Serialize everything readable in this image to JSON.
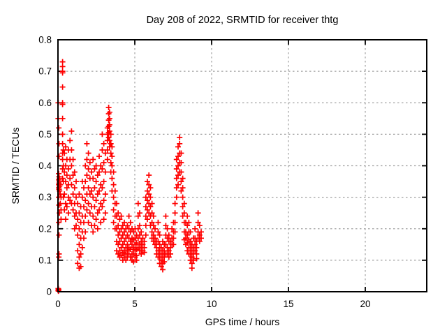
{
  "page": {
    "background": "#ffffff"
  },
  "chart_data": {
    "type": "scatter",
    "title": "Day 208 of 2022, SRMTID for receiver thtg",
    "xlabel": "GPS time / hours",
    "ylabel": "SRMTID / TECUs",
    "xlim": [
      0,
      24
    ],
    "ylim": [
      0,
      0.8
    ],
    "xticks": [
      0,
      5,
      10,
      15,
      20
    ],
    "xtick_labels": [
      "0",
      "5",
      "10",
      "15",
      "20"
    ],
    "yticks": [
      0,
      0.1,
      0.2,
      0.3,
      0.4,
      0.5,
      0.6,
      0.7,
      0.8
    ],
    "ytick_labels": [
      "0",
      "0.1",
      "0.2",
      "0.3",
      "0.4",
      "0.5",
      "0.6",
      "0.7",
      "0.8"
    ],
    "grid": true,
    "legend": "none",
    "marker": "plus",
    "colors": {
      "marker": "#ff0000",
      "grid": "#a0a0a0",
      "border": "#000000",
      "text": "#000000",
      "background": "#ffffff"
    },
    "series": [
      {
        "name": "SRMTID",
        "columns": [
          [
            0.02,
            [
              0.6,
              0.55,
              0.004,
              0.01
            ]
          ],
          [
            0.03,
            [
              0.008,
              0.002
            ]
          ],
          [
            0.04,
            [
              0.006
            ]
          ],
          [
            0.05,
            [
              0.52,
              0.375,
              0.355,
              0.34,
              0.33,
              0.3,
              0.22,
              0.11
            ]
          ],
          [
            0.07,
            [
              0.47,
              0.43,
              0.365,
              0.345,
              0.325,
              0.275,
              0.18,
              0.12
            ]
          ],
          [
            0.1,
            [
              0.36,
              0.35,
              0.335,
              0.32,
              0.25
            ]
          ],
          [
            0.15,
            [
              0.34,
              0.31,
              0.28
            ]
          ],
          [
            0.2,
            [
              0.3,
              0.26,
              0.23
            ]
          ],
          [
            0.3,
            [
              0.73,
              0.715,
              0.7,
              0.695,
              0.65,
              0.6,
              0.595,
              0.55,
              0.5,
              0.47,
              0.44,
              0.42,
              0.39,
              0.36
            ]
          ],
          [
            0.35,
            [
              0.45,
              0.4,
              0.35,
              0.3
            ]
          ],
          [
            0.42,
            [
              0.44,
              0.38,
              0.31,
              0.26
            ]
          ],
          [
            0.5,
            [
              0.46,
              0.4,
              0.35,
              0.28,
              0.23
            ]
          ],
          [
            0.58,
            [
              0.42,
              0.37,
              0.33,
              0.27
            ]
          ],
          [
            0.68,
            [
              0.45,
              0.39,
              0.34,
              0.3,
              0.25
            ]
          ],
          [
            0.78,
            [
              0.48,
              0.42,
              0.36,
              0.29
            ]
          ],
          [
            0.88,
            [
              0.51,
              0.45,
              0.4,
              0.34,
              0.28
            ]
          ],
          [
            0.98,
            [
              0.42,
              0.37,
              0.31,
              0.26
            ]
          ],
          [
            1.08,
            [
              0.38,
              0.33,
              0.28,
              0.24,
              0.2
            ]
          ],
          [
            1.18,
            [
              0.35,
              0.3,
              0.25,
              0.21
            ]
          ],
          [
            1.28,
            [
              0.28,
              0.23,
              0.18,
              0.13,
              0.09
            ]
          ],
          [
            1.38,
            [
              0.31,
              0.25,
              0.2,
              0.15,
              0.11,
              0.075
            ]
          ],
          [
            1.48,
            [
              0.27,
              0.22,
              0.17,
              0.12,
              0.08
            ]
          ],
          [
            1.58,
            [
              0.35,
              0.3,
              0.24,
              0.19,
              0.14
            ]
          ],
          [
            1.68,
            [
              0.33,
              0.27,
              0.22,
              0.17
            ]
          ],
          [
            1.78,
            [
              0.4,
              0.35,
              0.29,
              0.24,
              0.19
            ]
          ],
          [
            1.88,
            [
              0.47,
              0.42,
              0.37,
              0.31,
              0.26
            ]
          ],
          [
            1.98,
            [
              0.44,
              0.39,
              0.33,
              0.28,
              0.22
            ]
          ],
          [
            2.08,
            [
              0.41,
              0.36,
              0.31,
              0.25
            ]
          ],
          [
            2.18,
            [
              0.38,
              0.32,
              0.27,
              0.21
            ]
          ],
          [
            2.28,
            [
              0.42,
              0.36,
              0.3,
              0.24,
              0.19
            ]
          ],
          [
            2.38,
            [
              0.39,
              0.33,
              0.27,
              0.21
            ]
          ],
          [
            2.48,
            [
              0.4,
              0.35,
              0.29,
              0.23
            ]
          ],
          [
            2.58,
            [
              0.37,
              0.31,
              0.25,
              0.2
            ]
          ],
          [
            2.68,
            [
              0.43,
              0.38,
              0.32,
              0.26
            ]
          ],
          [
            2.78,
            [
              0.4,
              0.34,
              0.28,
              0.22
            ]
          ],
          [
            2.88,
            [
              0.5,
              0.45,
              0.39,
              0.33,
              0.27
            ]
          ],
          [
            2.98,
            [
              0.47,
              0.41,
              0.35,
              0.29,
              0.23
            ]
          ],
          [
            3.08,
            [
              0.44,
              0.38,
              0.31,
              0.25
            ]
          ],
          [
            3.22,
            [
              0.52,
              0.5,
              0.48,
              0.45,
              0.42
            ]
          ],
          [
            3.3,
            [
              0.585,
              0.565,
              0.545,
              0.525,
              0.505,
              0.49
            ]
          ],
          [
            3.36,
            [
              0.57,
              0.55,
              0.53,
              0.51,
              0.48,
              0.46
            ]
          ],
          [
            3.44,
            [
              0.5,
              0.47,
              0.44,
              0.41,
              0.38
            ]
          ],
          [
            3.52,
            [
              0.46,
              0.43,
              0.4,
              0.36,
              0.32
            ]
          ],
          [
            3.62,
            [
              0.38,
              0.34,
              0.3,
              0.26,
              0.22
            ]
          ],
          [
            3.72,
            [
              0.32,
              0.28,
              0.24,
              0.2
            ]
          ],
          [
            3.82,
            [
              0.28,
              0.24,
              0.2,
              0.16,
              0.13
            ]
          ],
          [
            3.92,
            [
              0.25,
              0.21,
              0.18,
              0.15,
              0.12
            ]
          ],
          [
            4.02,
            [
              0.23,
              0.19,
              0.16,
              0.13,
              0.11
            ]
          ],
          [
            4.12,
            [
              0.24,
              0.2,
              0.17,
              0.14,
              0.115
            ]
          ],
          [
            4.22,
            [
              0.21,
              0.18,
              0.15,
              0.125,
              0.1
            ]
          ],
          [
            4.32,
            [
              0.22,
              0.19,
              0.16,
              0.13,
              0.11
            ]
          ],
          [
            4.42,
            [
              0.2,
              0.17,
              0.14,
              0.12,
              0.1
            ]
          ],
          [
            4.52,
            [
              0.21,
              0.18,
              0.15,
              0.13,
              0.11
            ]
          ],
          [
            4.62,
            [
              0.24,
              0.2,
              0.17,
              0.14,
              0.12
            ]
          ],
          [
            4.72,
            [
              0.22,
              0.19,
              0.16,
              0.135,
              0.11
            ]
          ],
          [
            4.82,
            [
              0.2,
              0.17,
              0.15,
              0.12,
              0.1
            ]
          ],
          [
            4.92,
            [
              0.19,
              0.165,
              0.14,
              0.12,
              0.095
            ]
          ],
          [
            5.02,
            [
              0.2,
              0.17,
              0.15,
              0.13,
              0.11
            ]
          ],
          [
            5.12,
            [
              0.18,
              0.155,
              0.135,
              0.115,
              0.1
            ]
          ],
          [
            5.22,
            [
              0.28,
              0.24,
              0.2,
              0.17,
              0.14
            ]
          ],
          [
            5.32,
            [
              0.25,
              0.21,
              0.18,
              0.15,
              0.13
            ]
          ],
          [
            5.42,
            [
              0.19,
              0.16,
              0.14,
              0.12
            ]
          ],
          [
            5.52,
            [
              0.17,
              0.15,
              0.13
            ]
          ],
          [
            5.62,
            [
              0.16,
              0.14,
              0.125
            ]
          ],
          [
            5.72,
            [
              0.3,
              0.27,
              0.24,
              0.21,
              0.18
            ]
          ],
          [
            5.82,
            [
              0.35,
              0.32,
              0.29,
              0.26,
              0.23
            ]
          ],
          [
            5.92,
            [
              0.37,
              0.34,
              0.31,
              0.28,
              0.25
            ]
          ],
          [
            6.02,
            [
              0.33,
              0.3,
              0.27,
              0.24,
              0.21
            ]
          ],
          [
            6.12,
            [
              0.28,
              0.25,
              0.22,
              0.19,
              0.17
            ]
          ],
          [
            6.22,
            [
              0.24,
              0.21,
              0.18,
              0.16
            ]
          ],
          [
            6.32,
            [
              0.2,
              0.17,
              0.15
            ]
          ],
          [
            6.42,
            [
              0.16,
              0.14,
              0.12
            ]
          ],
          [
            6.52,
            [
              0.22,
              0.19,
              0.16,
              0.13,
              0.11
            ]
          ],
          [
            6.62,
            [
              0.18,
              0.15,
              0.13,
              0.11,
              0.09
            ]
          ],
          [
            6.72,
            [
              0.14,
              0.12,
              0.1,
              0.08
            ]
          ],
          [
            6.82,
            [
              0.16,
              0.13,
              0.11,
              0.09,
              0.07
            ]
          ],
          [
            6.92,
            [
              0.15,
              0.13,
              0.11,
              0.095
            ]
          ],
          [
            7.02,
            [
              0.24,
              0.21,
              0.18,
              0.15,
              0.12
            ]
          ],
          [
            7.12,
            [
              0.2,
              0.17,
              0.14,
              0.12
            ]
          ],
          [
            7.22,
            [
              0.18,
              0.16,
              0.13,
              0.11
            ]
          ],
          [
            7.32,
            [
              0.16,
              0.14,
              0.12
            ]
          ],
          [
            7.42,
            [
              0.2,
              0.17,
              0.15
            ]
          ],
          [
            7.52,
            [
              0.22,
              0.19,
              0.17,
              0.15
            ]
          ],
          [
            7.62,
            [
              0.28,
              0.25,
              0.22,
              0.19
            ]
          ],
          [
            7.72,
            [
              0.42,
              0.39,
              0.36,
              0.33,
              0.3
            ]
          ],
          [
            7.82,
            [
              0.46,
              0.43,
              0.4,
              0.37,
              0.34
            ]
          ],
          [
            7.92,
            [
              0.49,
              0.47,
              0.44,
              0.41,
              0.38
            ]
          ],
          [
            8.02,
            [
              0.44,
              0.41,
              0.38,
              0.35,
              0.32
            ]
          ],
          [
            8.12,
            [
              0.36,
              0.33,
              0.3,
              0.27,
              0.24
            ]
          ],
          [
            8.22,
            [
              0.28,
              0.25,
              0.22,
              0.19,
              0.165
            ]
          ],
          [
            8.32,
            [
              0.22,
              0.19,
              0.17,
              0.15
            ]
          ],
          [
            8.42,
            [
              0.24,
              0.21,
              0.18,
              0.155,
              0.13
            ]
          ],
          [
            8.52,
            [
              0.22,
              0.19,
              0.165,
              0.14,
              0.12
            ]
          ],
          [
            8.62,
            [
              0.19,
              0.16,
              0.14,
              0.12,
              0.1
            ]
          ],
          [
            8.72,
            [
              0.15,
              0.13,
              0.11,
              0.09,
              0.075
            ]
          ],
          [
            8.82,
            [
              0.17,
              0.14,
              0.12,
              0.1
            ]
          ],
          [
            8.92,
            [
              0.2,
              0.17,
              0.15,
              0.13
            ]
          ],
          [
            9.02,
            [
              0.16,
              0.14,
              0.12,
              0.105
            ]
          ],
          [
            9.12,
            [
              0.25,
              0.22,
              0.19,
              0.17
            ]
          ],
          [
            9.22,
            [
              0.21,
              0.18,
              0.16
            ]
          ],
          [
            9.32,
            [
              0.19,
              0.17
            ]
          ]
        ]
      }
    ]
  }
}
